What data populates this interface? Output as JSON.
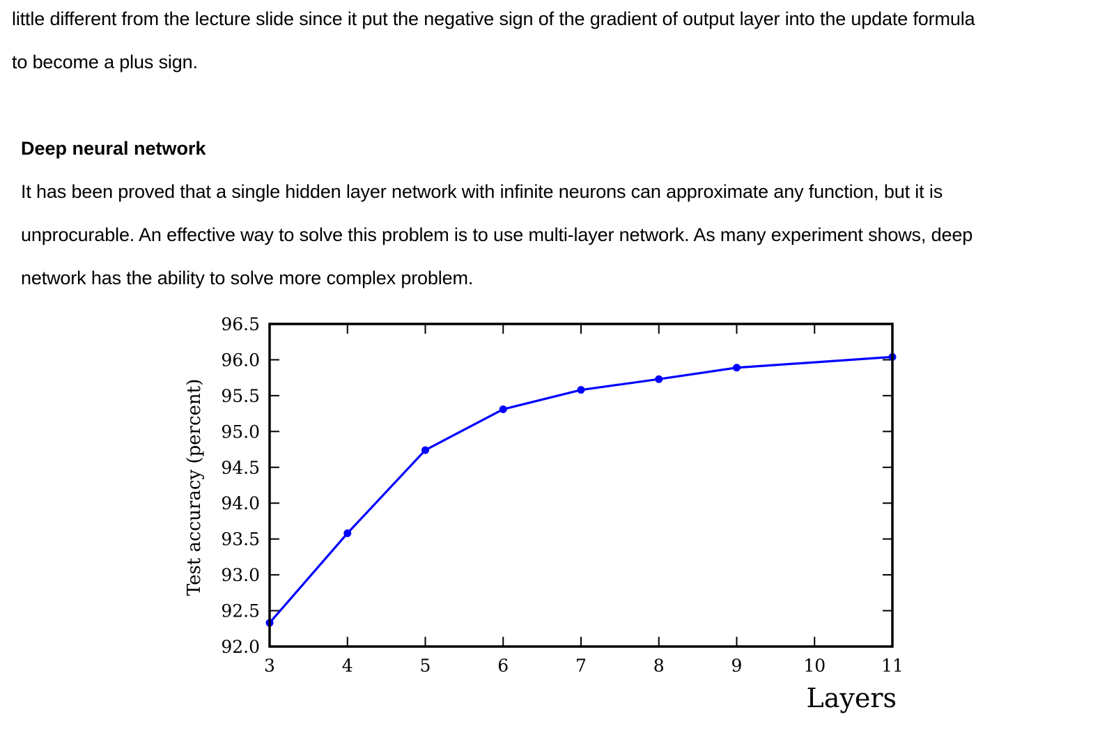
{
  "intro": {
    "line1": "little different from the lecture slide since it put the negative sign of the gradient of output layer into the update formula",
    "line2": "to become a plus sign."
  },
  "section": {
    "heading": "Deep neural network",
    "lines": [
      "It has been proved that a single hidden layer network with infinite neurons can approximate any function, but it is",
      "unprocurable. An effective way to solve this problem is to use multi-layer network. As many experiment shows, deep",
      "network has the ability to solve more complex problem."
    ]
  },
  "chart_data": {
    "type": "line",
    "title": "",
    "xlabel": "Layers",
    "ylabel": "Test accuracy (percent)",
    "xlim": [
      3,
      11
    ],
    "ylim": [
      92.0,
      96.5
    ],
    "x_ticks": [
      3,
      4,
      5,
      6,
      7,
      8,
      9,
      10,
      11
    ],
    "x_tick_labels": [
      "3",
      "4",
      "5",
      "6",
      "7",
      "8",
      "9",
      "10",
      "11"
    ],
    "y_ticks": [
      92.0,
      92.5,
      93.0,
      93.5,
      94.0,
      94.5,
      95.0,
      95.5,
      96.0,
      96.5
    ],
    "y_tick_labels": [
      "92.0",
      "92.5",
      "93.0",
      "93.5",
      "94.0",
      "94.5",
      "95.0",
      "95.5",
      "96.0",
      "96.5"
    ],
    "grid": false,
    "series": [
      {
        "color": "#0000ff",
        "x": [
          3,
          4,
          5,
          6,
          7,
          8,
          9,
          11
        ],
        "y": [
          92.33,
          93.58,
          94.74,
          95.31,
          95.58,
          95.73,
          95.89,
          96.04
        ]
      }
    ]
  }
}
